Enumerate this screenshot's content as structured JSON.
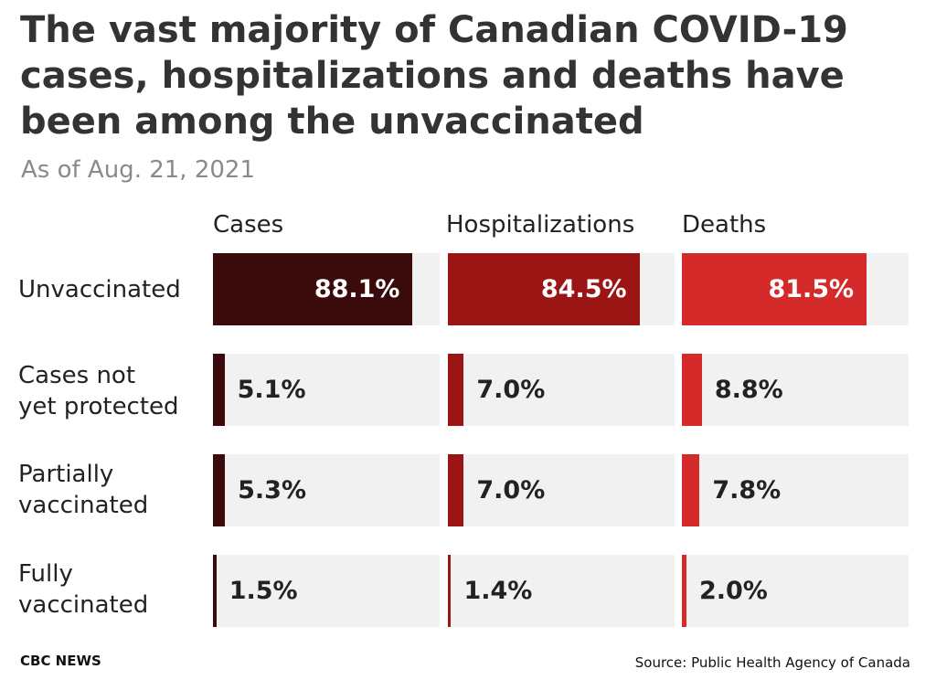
{
  "chart_data": {
    "type": "bar",
    "title": "The vast majority of Canadian COVID-19 cases, hospitalizations and deaths have been among the unvaccinated",
    "subtitle": "As of Aug. 21, 2021",
    "categories": [
      "Unvaccinated",
      "Cases not\nyet protected",
      "Partially\nvaccinated",
      "Fully\nvaccinated"
    ],
    "series": [
      {
        "name": "Cases",
        "values": [
          88.1,
          5.1,
          5.3,
          1.5
        ],
        "labels": [
          "88.1%",
          "5.1%",
          "5.3%",
          "1.5%"
        ],
        "color": "#3b0a0a"
      },
      {
        "name": "Hospitalizations",
        "values": [
          84.5,
          7.0,
          7.0,
          1.4
        ],
        "labels": [
          "84.5%",
          "7.0%",
          "7.0%",
          "1.4%"
        ],
        "color": "#9b1515"
      },
      {
        "name": "Deaths",
        "values": [
          81.5,
          8.8,
          7.8,
          2.0
        ],
        "labels": [
          "81.5%",
          "8.8%",
          "7.8%",
          "2.0%"
        ],
        "color": "#d42a2a"
      }
    ],
    "unit": "%",
    "ylim": [
      0,
      100
    ],
    "grid": false,
    "legend": "none"
  },
  "footer": {
    "brand": "CBC NEWS",
    "source": "Source: Public Health Agency of Canada"
  }
}
